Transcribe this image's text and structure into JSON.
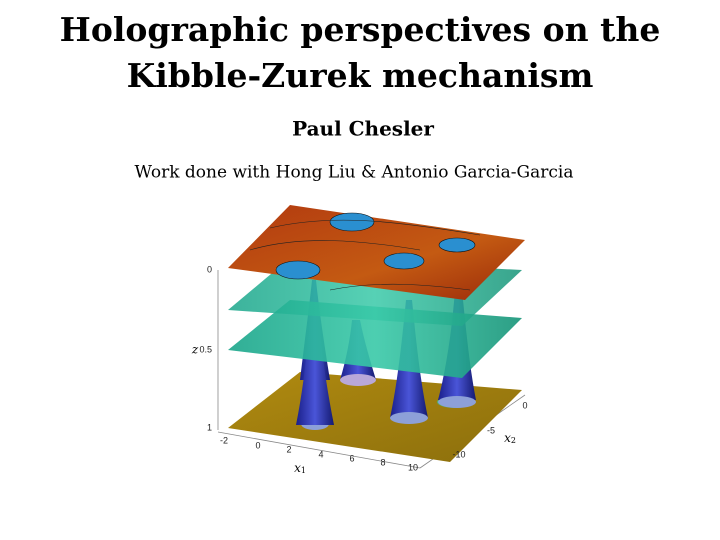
{
  "slide": {
    "title_lines": [
      "Holographic perspectives on the",
      "Kibble-Zurek mechanism"
    ],
    "author": "Paul Chesler",
    "subtitle": "Work done with Hong Liu & Antonio Garcia-Garcia",
    "figure": {
      "z_label": "z",
      "x1_label": {
        "base": "x",
        "sub": "1"
      },
      "x2_label": {
        "base": "x",
        "sub": "2"
      },
      "z_ticks": [
        "0",
        "0.5",
        "1"
      ],
      "x1_ticks": [
        "-2",
        "0",
        "2",
        "4",
        "6",
        "8",
        "10"
      ],
      "x2_ticks": [
        "0",
        "-5",
        "-10"
      ]
    }
  }
}
